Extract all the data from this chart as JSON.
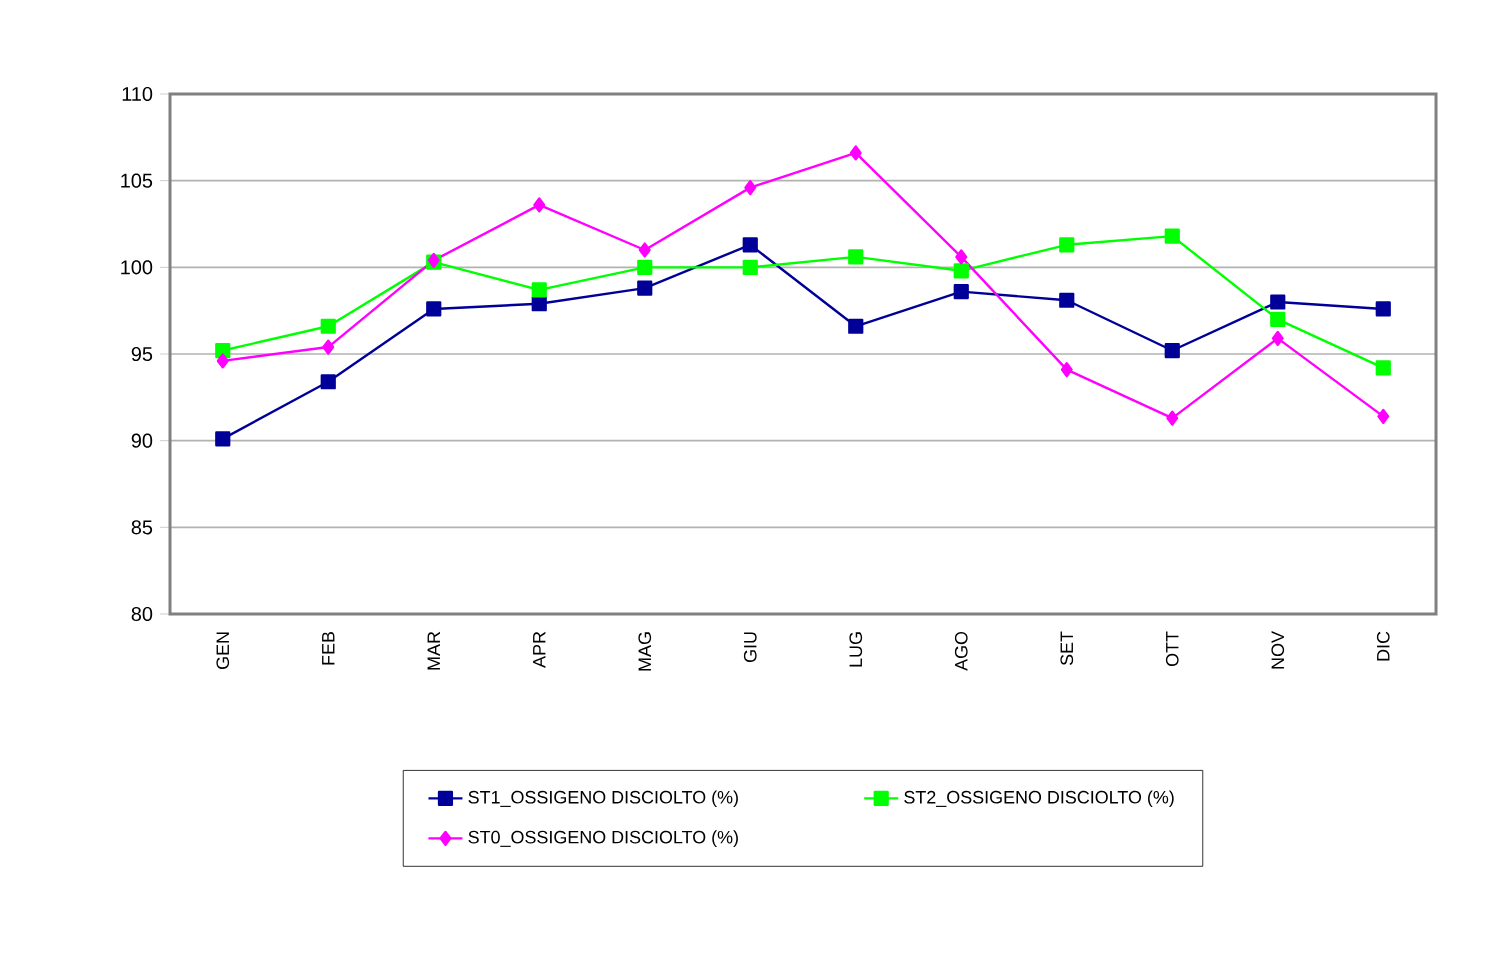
{
  "chart_data": {
    "type": "line",
    "categories": [
      "GEN",
      "FEB",
      "MAR",
      "APR",
      "MAG",
      "GIU",
      "LUG",
      "AGO",
      "SET",
      "OTT",
      "NOV",
      "DIC"
    ],
    "series": [
      {
        "name": "ST1_OSSIGENO DISCIOLTO (%)",
        "color": "#000099",
        "marker": "square",
        "values": [
          90.1,
          93.4,
          97.6,
          97.9,
          98.8,
          101.3,
          96.6,
          98.6,
          98.1,
          95.2,
          98.0,
          97.6
        ]
      },
      {
        "name": "ST2_OSSIGENO DISCIOLTO (%)",
        "color": "#00ff00",
        "marker": "square",
        "values": [
          95.2,
          96.6,
          100.3,
          98.7,
          100.0,
          100.0,
          100.6,
          99.8,
          101.3,
          101.8,
          97.0,
          94.2
        ]
      },
      {
        "name": "ST0_OSSIGENO DISCIOLTO (%)",
        "color": "#ff00ff",
        "marker": "diamond",
        "values": [
          94.6,
          95.4,
          100.4,
          103.6,
          101.0,
          104.6,
          106.6,
          100.6,
          94.1,
          91.3,
          95.9,
          91.4
        ]
      }
    ],
    "ylim": [
      80,
      110
    ],
    "yticks": [
      80,
      85,
      90,
      95,
      100,
      105,
      110
    ],
    "grid": "y",
    "legend": "bottom",
    "line_style": "solid"
  }
}
